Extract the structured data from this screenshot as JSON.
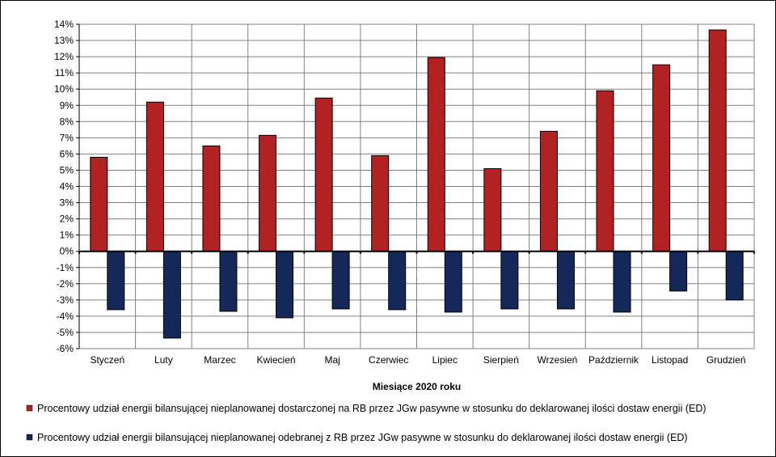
{
  "chart_data": {
    "type": "bar",
    "title": "",
    "xlabel": "Miesiące 2020  roku",
    "ylabel": "",
    "ylim": [
      -6,
      14
    ],
    "ytick_step": 1,
    "ytick_suffix": "%",
    "grid": "on",
    "legend_position": "bottom",
    "categories": [
      "Styczeń",
      "Luty",
      "Marzec",
      "Kwiecień",
      "Maj",
      "Czerwiec",
      "Lipiec",
      "Sierpień",
      "Wrzesień",
      "Październik",
      "Listopad",
      "Grudzień"
    ],
    "series": [
      {
        "name": "Procentowy udział energii bilansującej nieplanowanej dostarczonej na RB przez JGw pasywne w stosunku do deklarowanej ilości dostaw energii (ED)",
        "color": "#B22222",
        "values": [
          5.8,
          9.2,
          6.5,
          7.15,
          9.45,
          5.9,
          11.95,
          5.1,
          7.4,
          9.9,
          11.5,
          13.65
        ]
      },
      {
        "name": "Procentowy udział energii bilansującej nieplanowanej odebranej z RB przez JGw pasywne w stosunku do deklarowanej ilości dostaw energii (ED)",
        "color": "#14285A",
        "values": [
          -3.6,
          -5.35,
          -3.7,
          -4.1,
          -3.55,
          -3.6,
          -3.75,
          -3.55,
          -3.55,
          -3.75,
          -2.45,
          -3.0
        ]
      }
    ]
  }
}
